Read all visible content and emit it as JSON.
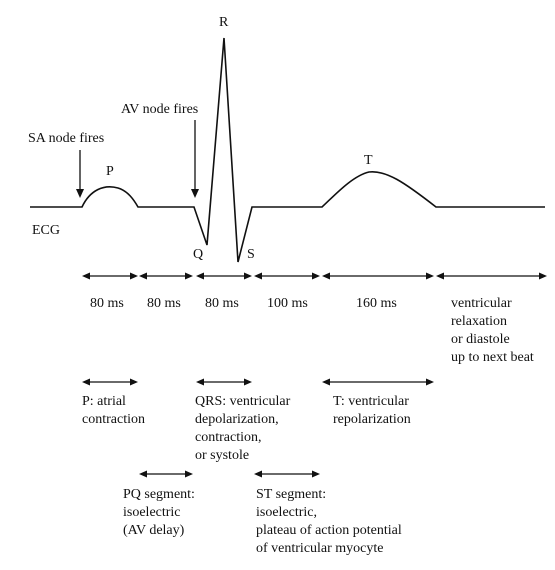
{
  "waveform": {
    "label": "ECG",
    "peaks": {
      "p": "P",
      "q": "Q",
      "r": "R",
      "s": "S",
      "t": "T"
    },
    "events": {
      "sa_node": "SA node fires",
      "av_node": "AV node fires"
    }
  },
  "intervals": [
    {
      "text": [
        "80 ms"
      ]
    },
    {
      "text": [
        "80 ms"
      ]
    },
    {
      "text": [
        "80 ms"
      ]
    },
    {
      "text": [
        "100 ms"
      ]
    },
    {
      "text": [
        "160 ms"
      ]
    },
    {
      "text": [
        "ventricular",
        "relaxation",
        "or diastole",
        "up to next beat"
      ]
    }
  ],
  "phases": [
    {
      "text": [
        "P: atrial",
        "contraction"
      ]
    },
    {
      "text": [
        "QRS: ventricular",
        "depolarization,",
        "contraction,",
        "or systole"
      ]
    },
    {
      "text": [
        "T: ventricular",
        "repolarization"
      ]
    }
  ],
  "segments": [
    {
      "text": [
        "PQ segment:",
        "isoelectric",
        "(AV delay)"
      ]
    },
    {
      "text": [
        "ST segment:",
        "isoelectric,",
        "plateau of action potential",
        "of ventricular myocyte"
      ]
    }
  ]
}
